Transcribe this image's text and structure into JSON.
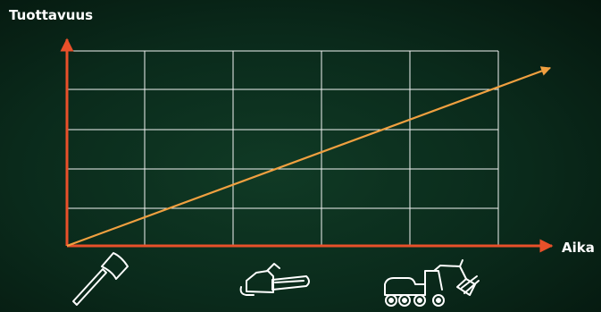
{
  "diagram": {
    "y_axis_label": "Tuottavuus",
    "x_axis_label": "Aika",
    "colors": {
      "axis": "#e8502a",
      "trend_line": "#f0a040",
      "grid": "#ffffff",
      "icon": "#ffffff",
      "text": "#ffffff"
    },
    "icons": [
      {
        "name": "axe-icon"
      },
      {
        "name": "chainsaw-icon"
      },
      {
        "name": "forest-harvester-icon"
      }
    ]
  }
}
